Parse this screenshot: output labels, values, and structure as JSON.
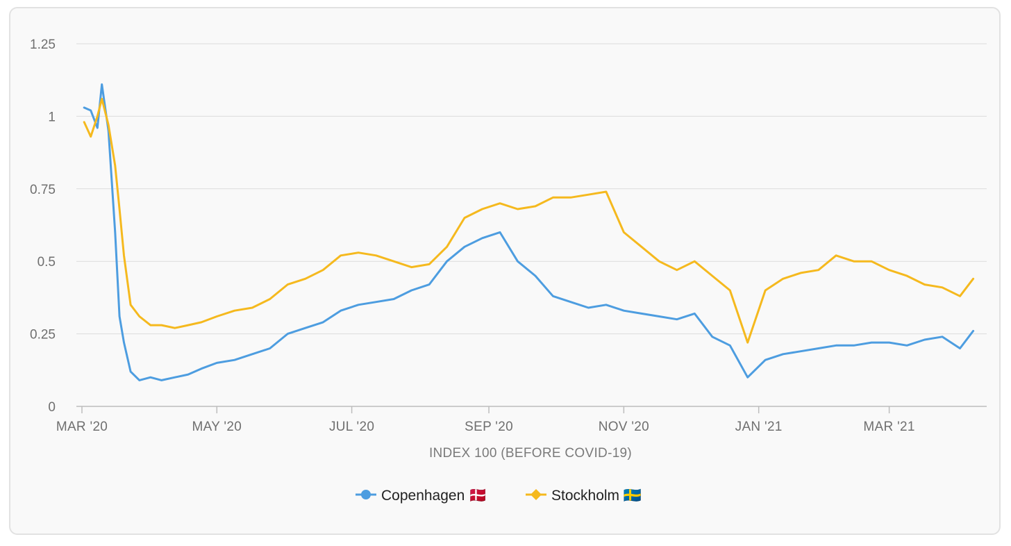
{
  "chart_data": {
    "type": "line",
    "title": "",
    "xlabel": "INDEX 100 (BEFORE COVID-19)",
    "ylabel": "",
    "ylim": [
      0,
      1.25
    ],
    "y_ticks": [
      "0",
      "0.25",
      "0.5",
      "0.75",
      "1",
      "1.25"
    ],
    "y_tick_values": [
      0,
      0.25,
      0.5,
      0.75,
      1,
      1.25
    ],
    "x_ticks": [
      "MAR '20",
      "MAY '20",
      "JUL '20",
      "SEP '20",
      "NOV '20",
      "JAN '21",
      "MAR '21"
    ],
    "x_tick_dates": [
      "2020-03-01",
      "2020-05-01",
      "2020-07-01",
      "2020-09-01",
      "2020-11-01",
      "2021-01-01",
      "2021-03-01"
    ],
    "x": [
      "2020-03-02",
      "2020-03-05",
      "2020-03-08",
      "2020-03-10",
      "2020-03-13",
      "2020-03-16",
      "2020-03-18",
      "2020-03-20",
      "2020-03-23",
      "2020-03-27",
      "2020-04-01",
      "2020-04-06",
      "2020-04-12",
      "2020-04-18",
      "2020-04-24",
      "2020-05-01",
      "2020-05-09",
      "2020-05-17",
      "2020-05-25",
      "2020-06-02",
      "2020-06-10",
      "2020-06-18",
      "2020-06-26",
      "2020-07-04",
      "2020-07-12",
      "2020-07-20",
      "2020-07-28",
      "2020-08-05",
      "2020-08-13",
      "2020-08-21",
      "2020-08-29",
      "2020-09-06",
      "2020-09-14",
      "2020-09-22",
      "2020-09-30",
      "2020-10-08",
      "2020-10-16",
      "2020-10-24",
      "2020-11-01",
      "2020-11-09",
      "2020-11-17",
      "2020-11-25",
      "2020-12-03",
      "2020-12-11",
      "2020-12-19",
      "2020-12-27",
      "2021-01-04",
      "2021-01-12",
      "2021-01-20",
      "2021-01-28",
      "2021-02-05",
      "2021-02-13",
      "2021-02-21",
      "2021-03-01",
      "2021-03-09",
      "2021-03-17",
      "2021-03-25",
      "2021-04-02",
      "2021-04-08"
    ],
    "series": [
      {
        "name": "Copenhagen",
        "color": "#4d9de0",
        "marker": "circle",
        "values": [
          1.03,
          1.02,
          0.96,
          1.11,
          0.95,
          0.6,
          0.31,
          0.22,
          0.12,
          0.09,
          0.1,
          0.09,
          0.1,
          0.11,
          0.13,
          0.15,
          0.16,
          0.18,
          0.2,
          0.25,
          0.27,
          0.29,
          0.33,
          0.35,
          0.36,
          0.37,
          0.4,
          0.42,
          0.5,
          0.55,
          0.58,
          0.6,
          0.5,
          0.45,
          0.38,
          0.36,
          0.34,
          0.35,
          0.33,
          0.32,
          0.31,
          0.3,
          0.32,
          0.24,
          0.21,
          0.1,
          0.16,
          0.18,
          0.19,
          0.2,
          0.21,
          0.21,
          0.22,
          0.22,
          0.21,
          0.23,
          0.24,
          0.2,
          0.26
        ]
      },
      {
        "name": "Stockholm",
        "color": "#f5b91e",
        "marker": "diamond",
        "values": [
          0.98,
          0.93,
          1.0,
          1.06,
          0.97,
          0.83,
          0.68,
          0.52,
          0.35,
          0.31,
          0.28,
          0.28,
          0.27,
          0.28,
          0.29,
          0.31,
          0.33,
          0.34,
          0.37,
          0.42,
          0.44,
          0.47,
          0.52,
          0.53,
          0.52,
          0.5,
          0.48,
          0.49,
          0.55,
          0.65,
          0.68,
          0.7,
          0.68,
          0.69,
          0.72,
          0.72,
          0.73,
          0.74,
          0.6,
          0.55,
          0.5,
          0.47,
          0.5,
          0.45,
          0.4,
          0.22,
          0.4,
          0.44,
          0.46,
          0.47,
          0.52,
          0.5,
          0.5,
          0.47,
          0.45,
          0.42,
          0.41,
          0.38,
          0.44
        ]
      }
    ],
    "legend": [
      {
        "label": "Copenhagen 🇩🇰"
      },
      {
        "label": "Stockholm 🇸🇪"
      }
    ],
    "legend_position": "bottom",
    "grid": true
  }
}
